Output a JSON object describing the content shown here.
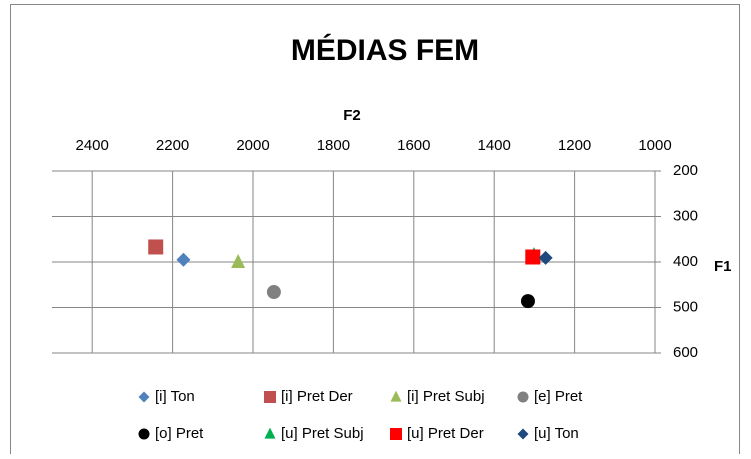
{
  "chart_data": {
    "type": "scatter",
    "title": "MÉDIAS FEM",
    "x_label": "F2",
    "y_label": "F1",
    "xlim": [
      2500,
      1000
    ],
    "xticks": [
      2400,
      2200,
      2000,
      1800,
      1600,
      1400,
      1200,
      1000
    ],
    "ylim": [
      200,
      600
    ],
    "yticks": [
      200,
      300,
      400,
      500,
      600
    ],
    "grid": true,
    "series": [
      {
        "name": "[i] Ton",
        "color": "#4f81bd",
        "marker": "diamond",
        "x": [
          2173
        ],
        "values": [
          395
        ]
      },
      {
        "name": "[i] Pret Der",
        "color": "#c0504d",
        "marker": "square",
        "x": [
          2242
        ],
        "values": [
          367
        ]
      },
      {
        "name": "[i] Pret Subj",
        "color": "#9bbb59",
        "marker": "triangle",
        "x": [
          2037
        ],
        "values": [
          400
        ]
      },
      {
        "name": "[e] Pret",
        "color": "#808080",
        "marker": "circle",
        "x": [
          1948
        ],
        "values": [
          466
        ]
      },
      {
        "name": "[o] Pret",
        "color": "#000000",
        "marker": "circle",
        "x": [
          1316
        ],
        "values": [
          486
        ]
      },
      {
        "name": "[u] Pret Subj",
        "color": "#00b050",
        "marker": "triangle",
        "x": [
          1301
        ],
        "values": [
          385
        ]
      },
      {
        "name": "[u] Pret Der",
        "color": "#ff0000",
        "marker": "square",
        "x": [
          1304
        ],
        "values": [
          389
        ]
      },
      {
        "name": "[u] Ton",
        "color": "#1f497d",
        "marker": "diamond",
        "x": [
          1272
        ],
        "values": [
          391
        ]
      }
    ]
  }
}
